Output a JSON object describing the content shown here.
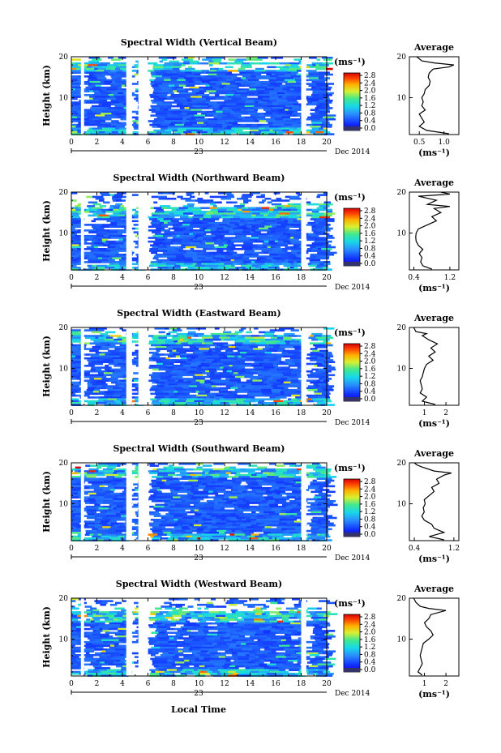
{
  "figure": {
    "x_axis_label": "Local Time",
    "date_label": "Dec 2014",
    "day_label": "23",
    "y_axis_label": "Height (km)",
    "colorbar_unit": "(ms⁻¹)",
    "colorbar_ticks": [
      "0.0",
      "0.4",
      "0.8",
      "1.2",
      "1.6",
      "2.0",
      "2.4",
      "2.8"
    ],
    "average_title": "Average",
    "average_unit": "(ms⁻¹)"
  },
  "chart_data": [
    {
      "type": "heatmap",
      "title": "Spectral Width (Vertical Beam)",
      "ylabel": "Height (km)",
      "x_ticks": [
        0,
        2,
        4,
        6,
        8,
        10,
        12,
        14,
        16,
        18,
        20
      ],
      "xlim": [
        0,
        20
      ],
      "ylim": [
        1,
        20
      ],
      "y_ticks": [
        10,
        20
      ],
      "color_range": [
        0,
        3.0
      ],
      "gaps_hours": [
        [
          0.75,
          1.0
        ],
        [
          4.3,
          4.75
        ],
        [
          5.25,
          6.0
        ],
        [
          18.0,
          18.4
        ]
      ],
      "upper_boundary_km": 19.0,
      "average": {
        "title": "Average",
        "x_ticks": [
          "0.5",
          "1.0"
        ],
        "xlim": [
          0.3,
          1.3
        ],
        "profile": [
          [
            1.2,
            1.1
          ],
          [
            2,
            0.65
          ],
          [
            3,
            0.5
          ],
          [
            4,
            0.6
          ],
          [
            5,
            0.55
          ],
          [
            6,
            0.5
          ],
          [
            7,
            0.62
          ],
          [
            8,
            0.55
          ],
          [
            9,
            0.58
          ],
          [
            10,
            0.55
          ],
          [
            11,
            0.6
          ],
          [
            12,
            0.62
          ],
          [
            13,
            0.7
          ],
          [
            14,
            0.72
          ],
          [
            15,
            0.68
          ],
          [
            16,
            0.7
          ],
          [
            17,
            0.78
          ],
          [
            17.5,
            1.1
          ],
          [
            18,
            1.2
          ],
          [
            18.5,
            0.8
          ],
          [
            19,
            0.55
          ],
          [
            20,
            0.45
          ]
        ]
      }
    },
    {
      "type": "heatmap",
      "title": "Spectral Width (Northward Beam)",
      "ylabel": "Height (km)",
      "x_ticks": [
        0,
        2,
        4,
        6,
        8,
        10,
        12,
        14,
        16,
        18,
        20
      ],
      "xlim": [
        0,
        20
      ],
      "ylim": [
        1,
        20
      ],
      "y_ticks": [
        10,
        20
      ],
      "color_range": [
        0,
        3.0
      ],
      "gaps_hours": [
        [
          0.75,
          1.0
        ],
        [
          4.3,
          4.75
        ],
        [
          5.25,
          6.0
        ],
        [
          18.0,
          18.4
        ]
      ],
      "upper_boundary_km": 16.5,
      "average": {
        "title": "Average",
        "x_ticks": [
          "0.4",
          "1.2"
        ],
        "xlim": [
          0.3,
          1.4
        ],
        "profile": [
          [
            1.2,
            0.8
          ],
          [
            2,
            0.6
          ],
          [
            3,
            0.55
          ],
          [
            4,
            0.58
          ],
          [
            5,
            0.52
          ],
          [
            6,
            0.6
          ],
          [
            7,
            0.5
          ],
          [
            8,
            0.45
          ],
          [
            9,
            0.44
          ],
          [
            10,
            0.45
          ],
          [
            11,
            0.5
          ],
          [
            12,
            0.7
          ],
          [
            13,
            0.9
          ],
          [
            14,
            0.8
          ],
          [
            15,
            1.0
          ],
          [
            16,
            0.85
          ],
          [
            16.5,
            1.2
          ],
          [
            17,
            0.7
          ],
          [
            18,
            0.9
          ],
          [
            19,
            0.5
          ],
          [
            19.5,
            1.2
          ],
          [
            20,
            1.0
          ]
        ]
      }
    },
    {
      "type": "heatmap",
      "title": "Spectral Width (Eastward Beam)",
      "ylabel": "Height (km)",
      "x_ticks": [
        0,
        2,
        4,
        6,
        8,
        10,
        12,
        14,
        16,
        18,
        20
      ],
      "xlim": [
        0,
        20
      ],
      "ylim": [
        1,
        20
      ],
      "y_ticks": [
        10,
        20
      ],
      "color_range": [
        0,
        3.0
      ],
      "gaps_hours": [
        [
          0.75,
          1.0
        ],
        [
          4.3,
          4.75
        ],
        [
          5.25,
          6.0
        ],
        [
          18.0,
          18.4
        ]
      ],
      "upper_boundary_km": 18.5,
      "average": {
        "title": "Average",
        "x_ticks": [
          "1",
          "2"
        ],
        "xlim": [
          0.3,
          2.6
        ],
        "profile": [
          [
            1.2,
            1.5
          ],
          [
            2,
            0.9
          ],
          [
            3,
            1.1
          ],
          [
            4,
            0.8
          ],
          [
            5,
            0.9
          ],
          [
            6,
            0.85
          ],
          [
            7,
            0.8
          ],
          [
            8,
            0.9
          ],
          [
            9,
            0.95
          ],
          [
            10,
            1.0
          ],
          [
            11,
            1.1
          ],
          [
            12,
            1.4
          ],
          [
            13,
            1.2
          ],
          [
            14,
            1.5
          ],
          [
            15,
            1.3
          ],
          [
            16,
            1.6
          ],
          [
            17,
            1.2
          ],
          [
            18,
            0.9
          ],
          [
            18.5,
            1.1
          ],
          [
            19,
            0.6
          ],
          [
            20,
            0.5
          ]
        ]
      }
    },
    {
      "type": "heatmap",
      "title": "Spectral Width (Southward Beam)",
      "ylabel": "Height (km)",
      "x_ticks": [
        0,
        2,
        4,
        6,
        8,
        10,
        12,
        14,
        16,
        18,
        20
      ],
      "xlim": [
        0,
        20
      ],
      "ylim": [
        1,
        20
      ],
      "y_ticks": [
        10,
        20
      ],
      "color_range": [
        0,
        3.0
      ],
      "gaps_hours": [
        [
          0.75,
          1.0
        ],
        [
          4.3,
          4.75
        ],
        [
          5.25,
          6.0
        ],
        [
          18.0,
          18.4
        ]
      ],
      "upper_boundary_km": 19.0,
      "average": {
        "title": "Average",
        "x_ticks": [
          "0.4",
          "1.2"
        ],
        "xlim": [
          0.3,
          1.3
        ],
        "profile": [
          [
            1.2,
            1.0
          ],
          [
            2,
            0.7
          ],
          [
            3,
            1.0
          ],
          [
            4,
            0.8
          ],
          [
            5,
            0.75
          ],
          [
            6,
            0.6
          ],
          [
            7,
            0.55
          ],
          [
            8,
            0.6
          ],
          [
            9,
            0.58
          ],
          [
            10,
            0.62
          ],
          [
            11,
            0.6
          ],
          [
            12,
            0.7
          ],
          [
            13,
            0.8
          ],
          [
            14,
            0.75
          ],
          [
            15,
            0.9
          ],
          [
            16,
            0.85
          ],
          [
            17,
            1.0
          ],
          [
            17.5,
            1.15
          ],
          [
            18,
            0.8
          ],
          [
            19,
            0.55
          ],
          [
            19.5,
            0.45
          ],
          [
            20,
            0.4
          ]
        ]
      }
    },
    {
      "type": "heatmap",
      "title": "Spectral Width (Westward Beam)",
      "ylabel": "Height (km)",
      "x_ticks": [
        0,
        2,
        4,
        6,
        8,
        10,
        12,
        14,
        16,
        18,
        20
      ],
      "xlim": [
        0,
        20
      ],
      "ylim": [
        1,
        20
      ],
      "y_ticks": [
        10,
        20
      ],
      "color_range": [
        0,
        3.0
      ],
      "gaps_hours": [
        [
          0.75,
          1.0
        ],
        [
          4.3,
          4.75
        ],
        [
          5.25,
          6.0
        ],
        [
          18.0,
          18.4
        ]
      ],
      "upper_boundary_km": 17.0,
      "average": {
        "title": "Average",
        "x_ticks": [
          "1",
          "2"
        ],
        "xlim": [
          0.3,
          2.6
        ],
        "profile": [
          [
            1.2,
            0.9
          ],
          [
            2,
            0.7
          ],
          [
            3,
            0.8
          ],
          [
            4,
            0.9
          ],
          [
            5,
            0.85
          ],
          [
            6,
            0.8
          ],
          [
            7,
            0.85
          ],
          [
            8,
            0.9
          ],
          [
            9,
            0.95
          ],
          [
            10,
            1.2
          ],
          [
            11,
            1.4
          ],
          [
            12,
            1.3
          ],
          [
            13,
            1.1
          ],
          [
            14,
            1.0
          ],
          [
            15,
            1.2
          ],
          [
            16,
            1.3
          ],
          [
            17,
            2.0
          ],
          [
            17.5,
            1.2
          ],
          [
            18,
            0.8
          ],
          [
            19,
            0.6
          ],
          [
            20,
            0.5
          ]
        ]
      }
    }
  ]
}
